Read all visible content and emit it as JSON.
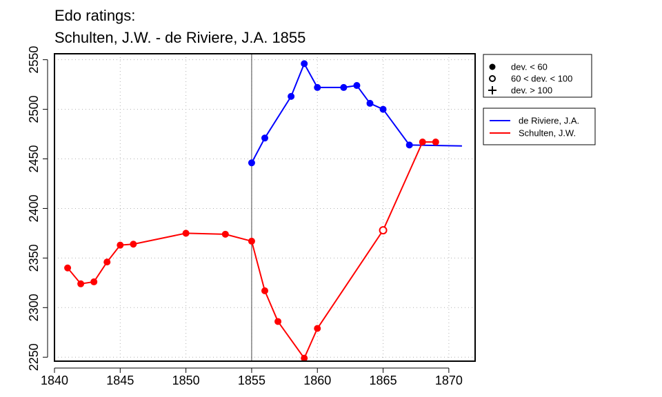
{
  "chart_data": {
    "type": "line",
    "title": "Edo ratings:",
    "subtitle": "Schulten, J.W. - de Riviere, J.A. 1855",
    "xlabel": "",
    "ylabel": "",
    "xlim": [
      1840,
      1872
    ],
    "ylim": [
      2246,
      2556
    ],
    "xticks": [
      "1840",
      "1845",
      "1850",
      "1855",
      "1860",
      "1865",
      "1870"
    ],
    "yticks": [
      "2250",
      "2300",
      "2350",
      "2400",
      "2450",
      "2500",
      "2550"
    ],
    "grid": "dotted",
    "reference_line_x": 1855,
    "series": [
      {
        "name": "de Riviere, J.A.",
        "color": "#0000ff",
        "points": [
          {
            "x": 1855,
            "y": 2446,
            "marker": "filled"
          },
          {
            "x": 1856,
            "y": 2471,
            "marker": "filled"
          },
          {
            "x": 1858,
            "y": 2513,
            "marker": "filled"
          },
          {
            "x": 1859,
            "y": 2546,
            "marker": "filled"
          },
          {
            "x": 1860,
            "y": 2522,
            "marker": "filled"
          },
          {
            "x": 1862,
            "y": 2522,
            "marker": "filled"
          },
          {
            "x": 1863,
            "y": 2524,
            "marker": "filled"
          },
          {
            "x": 1864,
            "y": 2506,
            "marker": "filled"
          },
          {
            "x": 1865,
            "y": 2500,
            "marker": "filled"
          },
          {
            "x": 1867,
            "y": 2464,
            "marker": "filled"
          },
          {
            "x": 1871,
            "y": 2463,
            "marker": "none"
          }
        ]
      },
      {
        "name": "Schulten, J.W.",
        "color": "#ff0000",
        "points": [
          {
            "x": 1841,
            "y": 2340,
            "marker": "filled"
          },
          {
            "x": 1842,
            "y": 2324,
            "marker": "filled"
          },
          {
            "x": 1843,
            "y": 2326,
            "marker": "filled"
          },
          {
            "x": 1844,
            "y": 2346,
            "marker": "filled"
          },
          {
            "x": 1845,
            "y": 2363,
            "marker": "filled"
          },
          {
            "x": 1846,
            "y": 2364,
            "marker": "filled"
          },
          {
            "x": 1850,
            "y": 2375,
            "marker": "filled"
          },
          {
            "x": 1853,
            "y": 2374,
            "marker": "filled"
          },
          {
            "x": 1855,
            "y": 2367,
            "marker": "filled"
          },
          {
            "x": 1856,
            "y": 2317,
            "marker": "filled"
          },
          {
            "x": 1857,
            "y": 2286,
            "marker": "filled"
          },
          {
            "x": 1859,
            "y": 2249,
            "marker": "filled"
          },
          {
            "x": 1860,
            "y": 2279,
            "marker": "filled"
          },
          {
            "x": 1865,
            "y": 2378,
            "marker": "open"
          },
          {
            "x": 1868,
            "y": 2467,
            "marker": "filled"
          },
          {
            "x": 1869,
            "y": 2467,
            "marker": "filled"
          }
        ]
      }
    ],
    "marker_legend": [
      {
        "symbol": "filled",
        "label": "dev. < 60"
      },
      {
        "symbol": "open",
        "label": "60 < dev. < 100"
      },
      {
        "symbol": "plus",
        "label": "dev. > 100"
      }
    ],
    "legend_position": "right"
  }
}
